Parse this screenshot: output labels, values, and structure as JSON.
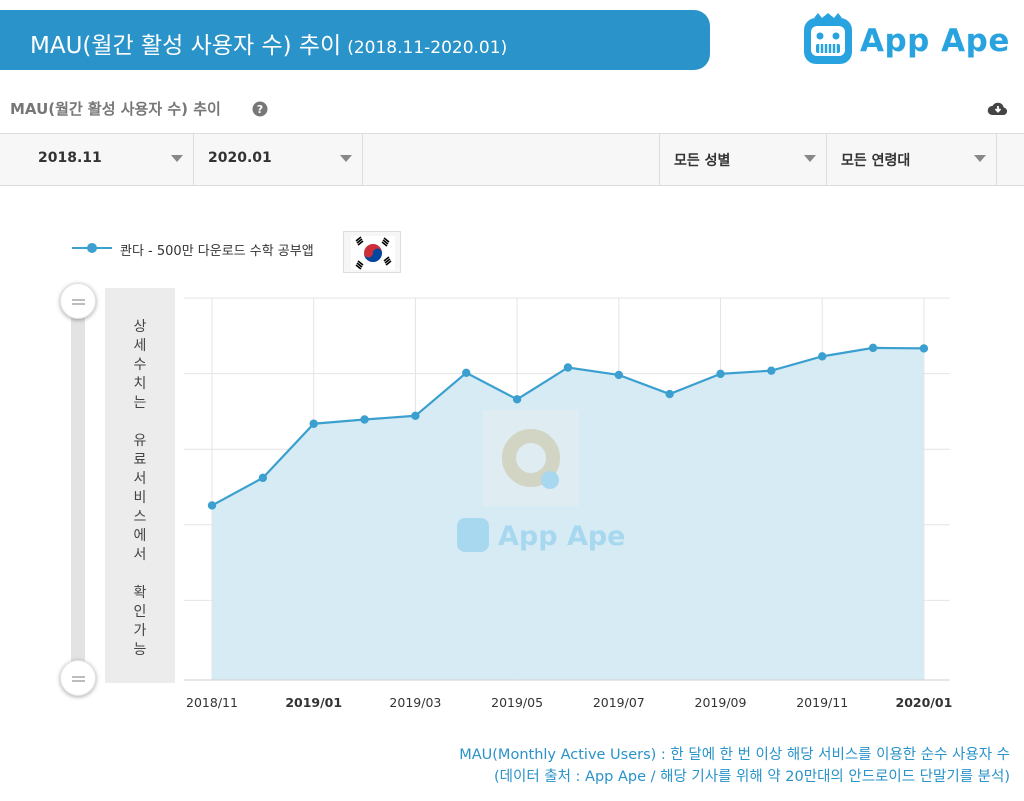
{
  "banner": {
    "title": "MAU(월간 활성 사용자 수) 추이",
    "period": "(2018.11-2020.01)"
  },
  "brand": {
    "name": "App Ape",
    "color": "#29a3df"
  },
  "panel": {
    "title": "MAU(월간 활성 사용자 수) 추이",
    "help_icon": "help-icon",
    "download_icon": "cloud-download-icon"
  },
  "filters": {
    "start": "2018.11",
    "end": "2020.01",
    "gender": "모든 성별",
    "age": "모든 연령대"
  },
  "legend": {
    "series_name": "콴다 - 500만 다운로드 수학 공부앱",
    "flag_icon": "korea-flag-icon"
  },
  "locked_label": "상\n세\n수\n치\n는\n \n유\n료\n서\n비\n스\n에\n서\n \n확\n인\n가\n능",
  "watermark": "App Ape",
  "chart_data": {
    "type": "area",
    "x": [
      "2018/11",
      "2018/12",
      "2019/01",
      "2019/02",
      "2019/03",
      "2019/04",
      "2019/05",
      "2019/06",
      "2019/07",
      "2019/08",
      "2019/09",
      "2019/10",
      "2019/11",
      "2019/12",
      "2020/01"
    ],
    "x_tick_labels": [
      "2018/11",
      "2019/01",
      "2019/03",
      "2019/05",
      "2019/07",
      "2019/09",
      "2019/11",
      "2020/01"
    ],
    "bold_ticks": [
      "2019/01",
      "2020/01"
    ],
    "series": [
      {
        "name": "콴다 - 500만 다운로드 수학 공부앱",
        "color": "#3ba0cf",
        "fill": "#d5eaf4",
        "values": [
          32.9,
          38.1,
          48.3,
          49.1,
          49.8,
          57.9,
          52.9,
          58.9,
          57.5,
          53.9,
          57.7,
          58.3,
          61.0,
          62.6,
          62.5
        ]
      }
    ],
    "y_axis_values_hidden": true,
    "grid": true
  },
  "notes": {
    "line1": "MAU(Monthly Active Users) : 한 달에 한 번 이상 해당 서비스를 이용한 순수 사용자 수",
    "line2": "(데이터 출처 : App Ape / 해당 기사를 위해 약 20만대의 안드로이드 단말기를 분석)"
  }
}
